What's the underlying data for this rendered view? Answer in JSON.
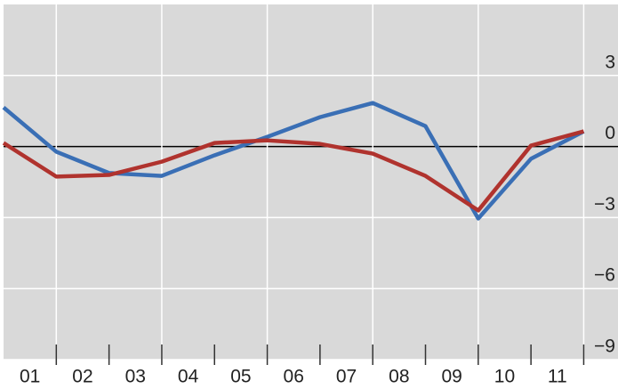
{
  "chart_data": {
    "type": "line",
    "x": [
      0,
      1,
      2,
      3,
      4,
      5,
      6,
      7,
      8,
      9,
      10,
      11
    ],
    "categories": [
      "01",
      "02",
      "03",
      "04",
      "05",
      "06",
      "07",
      "08",
      "09",
      "10",
      "11"
    ],
    "series": [
      {
        "color": "#3a6fb5",
        "values": [
          1.65,
          -0.22,
          -1.12,
          -1.24,
          -0.37,
          0.41,
          1.24,
          1.84,
          0.86,
          -3.04,
          -0.52,
          0.64
        ]
      },
      {
        "color": "#b0332e",
        "values": [
          0.15,
          -1.27,
          -1.2,
          -0.64,
          0.15,
          0.26,
          0.11,
          -0.3,
          -1.24,
          -2.7,
          0.04,
          0.64
        ]
      }
    ],
    "xlim": [
      0,
      11.65
    ],
    "xticks": [
      1,
      2,
      3,
      4,
      5,
      6,
      7,
      8,
      9,
      10,
      11
    ],
    "ylim": [
      -9,
      6
    ],
    "yticks": [
      3,
      0,
      {
        "value": -3,
        "label": "−3"
      },
      {
        "value": -6,
        "label": "−6"
      },
      {
        "value": -9,
        "label": "−9"
      }
    ],
    "grid": true
  }
}
